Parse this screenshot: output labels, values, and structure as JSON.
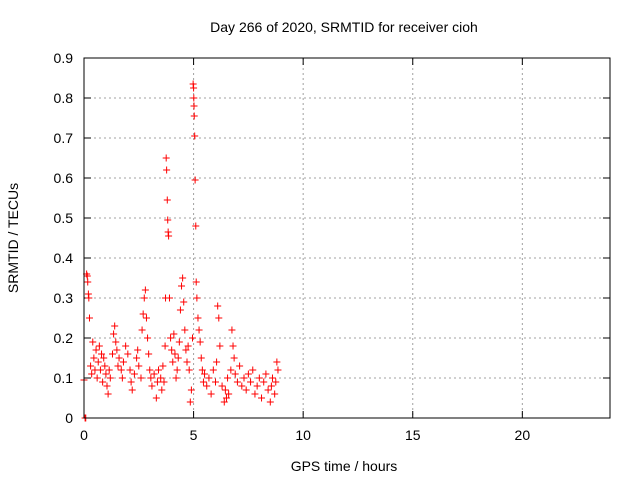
{
  "chart_data": {
    "type": "scatter",
    "title": "Day 266 of 2020, SRMTID for receiver cioh",
    "xlabel": "GPS time / hours",
    "ylabel": "SRMTID / TECUs",
    "xlim": [
      0,
      24
    ],
    "ylim": [
      0,
      0.9
    ],
    "xticks": [
      0,
      5,
      10,
      15,
      20
    ],
    "xtick_labels": [
      "0",
      "5",
      "10",
      "15",
      "20"
    ],
    "yticks": [
      0,
      0.1,
      0.2,
      0.3,
      0.4,
      0.5,
      0.6,
      0.7,
      0.8,
      0.9
    ],
    "ytick_labels": [
      "0",
      "0.1",
      "0.2",
      "0.3",
      "0.4",
      "0.5",
      "0.6",
      "0.7",
      "0.8",
      "0.9"
    ],
    "grid": true,
    "marker": "+",
    "color": "#ff0000",
    "series": [
      {
        "name": "SRMTID",
        "points": [
          [
            0.0,
            0.095
          ],
          [
            0.05,
            0.0
          ],
          [
            0.08,
            0.0
          ],
          [
            0.12,
            0.36
          ],
          [
            0.15,
            0.355
          ],
          [
            0.17,
            0.34
          ],
          [
            0.2,
            0.31
          ],
          [
            0.22,
            0.3
          ],
          [
            0.25,
            0.25
          ],
          [
            0.3,
            0.13
          ],
          [
            0.35,
            0.11
          ],
          [
            0.4,
            0.19
          ],
          [
            0.45,
            0.15
          ],
          [
            0.5,
            0.12
          ],
          [
            0.55,
            0.17
          ],
          [
            0.6,
            0.1
          ],
          [
            0.65,
            0.14
          ],
          [
            0.7,
            0.18
          ],
          [
            0.75,
            0.12
          ],
          [
            0.8,
            0.16
          ],
          [
            0.85,
            0.09
          ],
          [
            0.9,
            0.15
          ],
          [
            0.95,
            0.13
          ],
          [
            1.0,
            0.11
          ],
          [
            1.05,
            0.08
          ],
          [
            1.1,
            0.06
          ],
          [
            1.15,
            0.12
          ],
          [
            1.2,
            0.1
          ],
          [
            1.3,
            0.16
          ],
          [
            1.35,
            0.21
          ],
          [
            1.4,
            0.23
          ],
          [
            1.45,
            0.19
          ],
          [
            1.5,
            0.17
          ],
          [
            1.55,
            0.13
          ],
          [
            1.6,
            0.15
          ],
          [
            1.7,
            0.12
          ],
          [
            1.75,
            0.1
          ],
          [
            1.8,
            0.14
          ],
          [
            1.9,
            0.18
          ],
          [
            2.0,
            0.16
          ],
          [
            2.1,
            0.12
          ],
          [
            2.15,
            0.09
          ],
          [
            2.2,
            0.07
          ],
          [
            2.3,
            0.11
          ],
          [
            2.4,
            0.15
          ],
          [
            2.45,
            0.17
          ],
          [
            2.5,
            0.13
          ],
          [
            2.6,
            0.1
          ],
          [
            2.65,
            0.22
          ],
          [
            2.7,
            0.26
          ],
          [
            2.75,
            0.3
          ],
          [
            2.8,
            0.32
          ],
          [
            2.85,
            0.25
          ],
          [
            2.9,
            0.2
          ],
          [
            2.95,
            0.16
          ],
          [
            3.0,
            0.12
          ],
          [
            3.05,
            0.1
          ],
          [
            3.1,
            0.08
          ],
          [
            3.2,
            0.11
          ],
          [
            3.3,
            0.05
          ],
          [
            3.35,
            0.09
          ],
          [
            3.4,
            0.12
          ],
          [
            3.5,
            0.1
          ],
          [
            3.55,
            0.07
          ],
          [
            3.6,
            0.13
          ],
          [
            3.65,
            0.09
          ],
          [
            3.7,
            0.18
          ],
          [
            3.72,
            0.3
          ],
          [
            3.75,
            0.65
          ],
          [
            3.77,
            0.62
          ],
          [
            3.8,
            0.545
          ],
          [
            3.82,
            0.495
          ],
          [
            3.84,
            0.465
          ],
          [
            3.86,
            0.455
          ],
          [
            3.9,
            0.3
          ],
          [
            3.95,
            0.2
          ],
          [
            4.0,
            0.17
          ],
          [
            4.05,
            0.14
          ],
          [
            4.1,
            0.21
          ],
          [
            4.15,
            0.16
          ],
          [
            4.2,
            0.1
          ],
          [
            4.25,
            0.12
          ],
          [
            4.3,
            0.15
          ],
          [
            4.35,
            0.19
          ],
          [
            4.4,
            0.27
          ],
          [
            4.45,
            0.33
          ],
          [
            4.5,
            0.35
          ],
          [
            4.55,
            0.29
          ],
          [
            4.6,
            0.22
          ],
          [
            4.65,
            0.17
          ],
          [
            4.7,
            0.14
          ],
          [
            4.75,
            0.18
          ],
          [
            4.8,
            0.12
          ],
          [
            4.85,
            0.04
          ],
          [
            4.9,
            0.07
          ],
          [
            4.95,
            0.2
          ],
          [
            4.98,
            0.835
          ],
          [
            5.0,
            0.825
          ],
          [
            5.01,
            0.8
          ],
          [
            5.02,
            0.78
          ],
          [
            5.03,
            0.755
          ],
          [
            5.05,
            0.705
          ],
          [
            5.07,
            0.595
          ],
          [
            5.1,
            0.48
          ],
          [
            5.12,
            0.34
          ],
          [
            5.15,
            0.3
          ],
          [
            5.2,
            0.25
          ],
          [
            5.25,
            0.22
          ],
          [
            5.3,
            0.19
          ],
          [
            5.35,
            0.15
          ],
          [
            5.4,
            0.12
          ],
          [
            5.45,
            0.09
          ],
          [
            5.5,
            0.11
          ],
          [
            5.6,
            0.08
          ],
          [
            5.7,
            0.1
          ],
          [
            5.8,
            0.06
          ],
          [
            5.9,
            0.12
          ],
          [
            6.0,
            0.09
          ],
          [
            6.05,
            0.14
          ],
          [
            6.1,
            0.28
          ],
          [
            6.15,
            0.25
          ],
          [
            6.2,
            0.18
          ],
          [
            6.3,
            0.08
          ],
          [
            6.4,
            0.04
          ],
          [
            6.45,
            0.07
          ],
          [
            6.5,
            0.05
          ],
          [
            6.55,
            0.1
          ],
          [
            6.6,
            0.06
          ],
          [
            6.7,
            0.12
          ],
          [
            6.75,
            0.22
          ],
          [
            6.8,
            0.18
          ],
          [
            6.85,
            0.15
          ],
          [
            6.9,
            0.11
          ],
          [
            7.0,
            0.09
          ],
          [
            7.1,
            0.13
          ],
          [
            7.2,
            0.08
          ],
          [
            7.3,
            0.1
          ],
          [
            7.4,
            0.07
          ],
          [
            7.5,
            0.11
          ],
          [
            7.6,
            0.09
          ],
          [
            7.7,
            0.12
          ],
          [
            7.8,
            0.06
          ],
          [
            7.9,
            0.08
          ],
          [
            8.0,
            0.1
          ],
          [
            8.1,
            0.05
          ],
          [
            8.2,
            0.09
          ],
          [
            8.3,
            0.11
          ],
          [
            8.4,
            0.07
          ],
          [
            8.5,
            0.04
          ],
          [
            8.55,
            0.08
          ],
          [
            8.6,
            0.1
          ],
          [
            8.7,
            0.06
          ],
          [
            8.75,
            0.09
          ],
          [
            8.8,
            0.14
          ],
          [
            8.85,
            0.12
          ]
        ]
      }
    ]
  }
}
